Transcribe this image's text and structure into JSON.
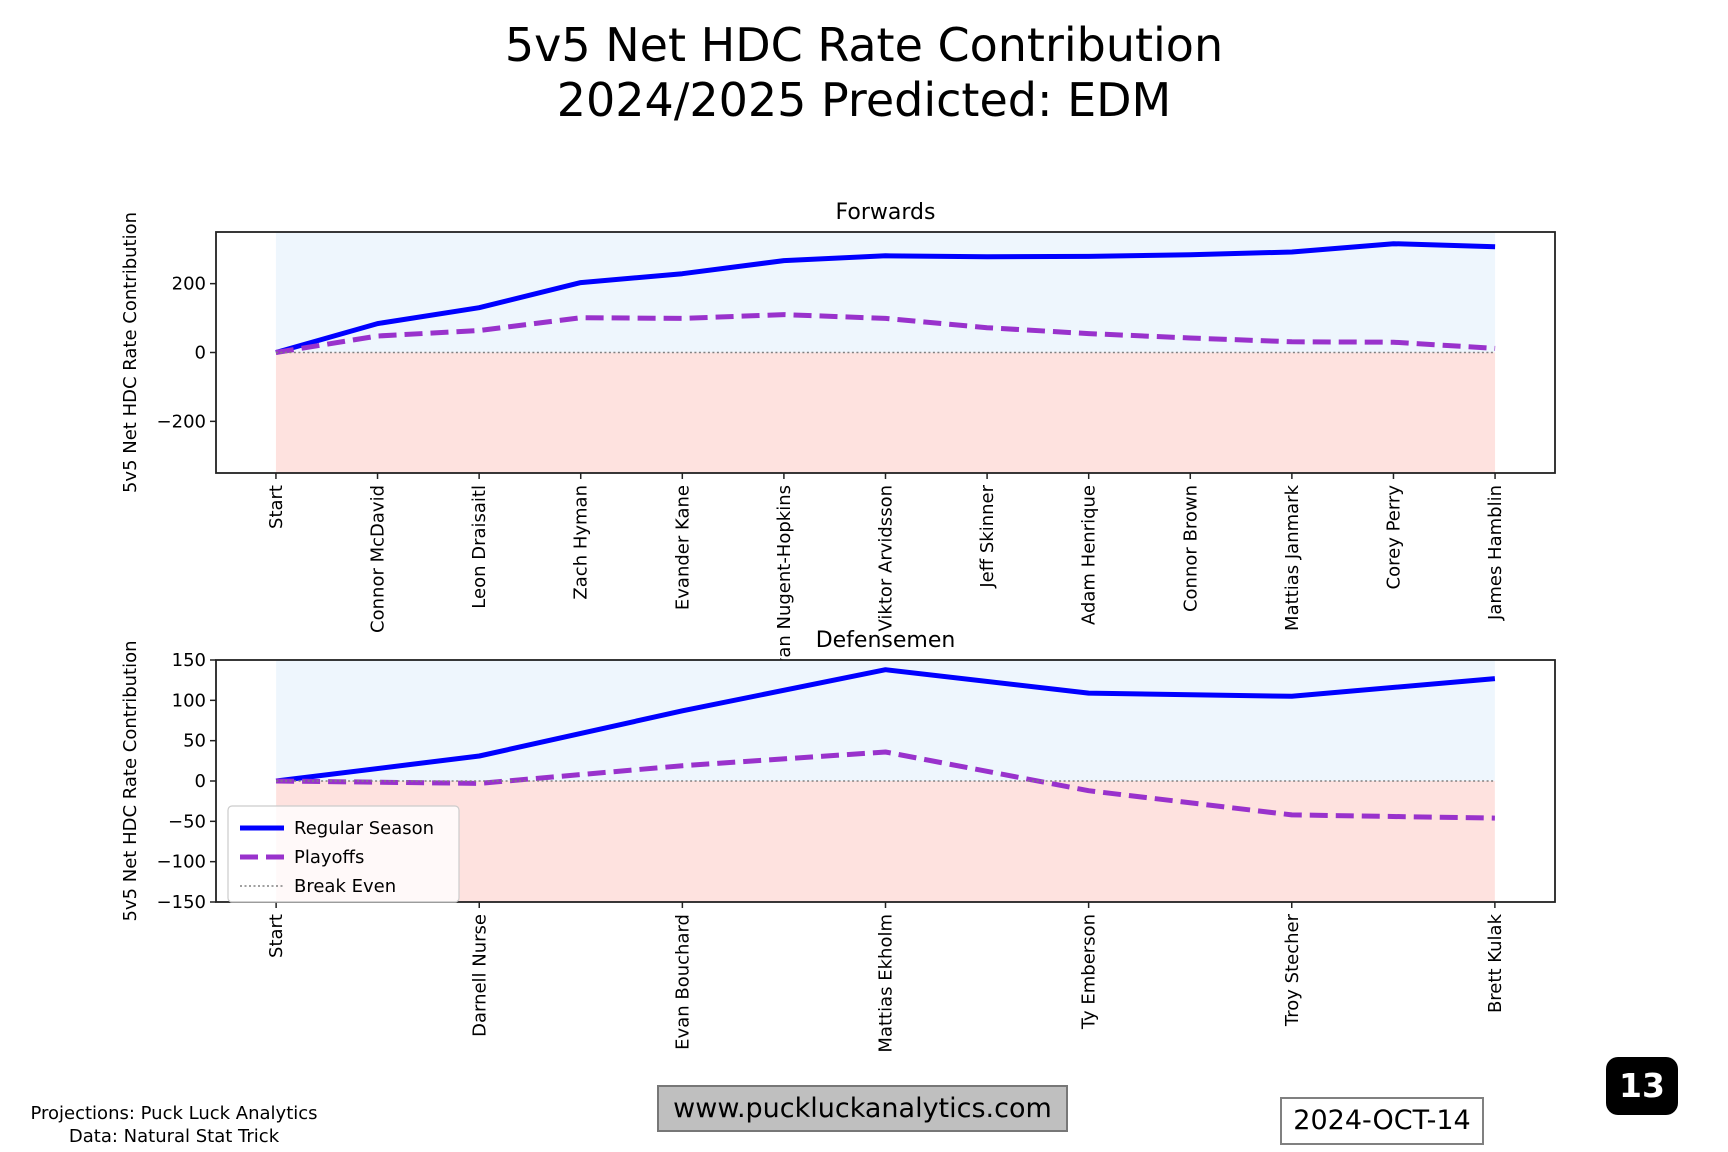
{
  "figure": {
    "title_line1": "5v5 Net HDC Rate Contribution",
    "title_line2": "2024/2025 Predicted: EDM",
    "credits_line1": "Projections: Puck Luck Analytics",
    "credits_line2": "Data: Natural Stat Trick",
    "website": "www.puckluckanalytics.com",
    "date": "2024-OCT-14",
    "page_number": "13"
  },
  "colors": {
    "regular_season": "#0000ff",
    "playoffs": "#9932cc",
    "break_even": "#808080",
    "positive_fill": "#eef6fd",
    "negative_fill": "#fee2df"
  },
  "chart_data": [
    {
      "type": "line",
      "title": "Forwards",
      "xlabel": "",
      "ylabel": "5v5 Net HDC Rate Contribution",
      "ylim": [
        -350,
        350
      ],
      "yticks": [
        -200,
        0,
        200
      ],
      "ytick_labels": [
        "−200",
        "0",
        "200"
      ],
      "categories": [
        "Start",
        "Connor McDavid",
        "Leon Draisaitl",
        "Zach Hyman",
        "Evander Kane",
        "Ryan Nugent-Hopkins",
        "Viktor Arvidsson",
        "Jeff Skinner",
        "Adam Henrique",
        "Connor Brown",
        "Mattias Janmark",
        "Corey Perry",
        "James Hamblin"
      ],
      "series": [
        {
          "name": "Regular Season",
          "style": "solid",
          "values": [
            0,
            84,
            130,
            203,
            229,
            267,
            281,
            278,
            279,
            284,
            292,
            316,
            307
          ]
        },
        {
          "name": "Playoffs",
          "style": "dashed",
          "values": [
            0,
            48,
            64,
            101,
            99,
            110,
            99,
            72,
            55,
            42,
            31,
            30,
            12
          ]
        },
        {
          "name": "Break Even",
          "style": "dotted",
          "values": [
            0,
            0,
            0,
            0,
            0,
            0,
            0,
            0,
            0,
            0,
            0,
            0,
            0
          ]
        }
      ],
      "grid": false,
      "legend": null
    },
    {
      "type": "line",
      "title": "Defensemen",
      "xlabel": "",
      "ylabel": "5v5 Net HDC Rate Contribution",
      "ylim": [
        -150,
        150
      ],
      "yticks": [
        -150,
        -100,
        -50,
        0,
        50,
        100,
        150
      ],
      "ytick_labels": [
        "−150",
        "−100",
        "−50",
        "0",
        "50",
        "100",
        "150"
      ],
      "categories": [
        "Start",
        "Darnell Nurse",
        "Evan Bouchard",
        "Mattias Ekholm",
        "Ty Emberson",
        "Troy Stecher",
        "Brett Kulak"
      ],
      "series": [
        {
          "name": "Regular Season",
          "style": "solid",
          "values": [
            0,
            31,
            87,
            138,
            109,
            105,
            127
          ]
        },
        {
          "name": "Playoffs",
          "style": "dashed",
          "values": [
            0,
            -3,
            19,
            36,
            -12,
            -42,
            -46
          ]
        },
        {
          "name": "Break Even",
          "style": "dotted",
          "values": [
            0,
            0,
            0,
            0,
            0,
            0,
            0
          ]
        }
      ],
      "grid": false,
      "legend": {
        "position": "lower-left",
        "entries": [
          "Regular Season",
          "Playoffs",
          "Break Even"
        ]
      }
    }
  ]
}
